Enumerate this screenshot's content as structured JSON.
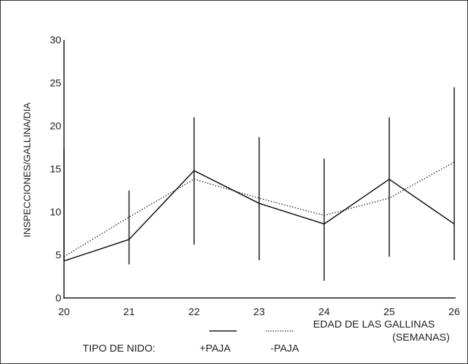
{
  "chart_data": {
    "type": "line",
    "ylabel": "INSPECCIONES/GALLINA/DIA",
    "xlabel": "EDAD DE LAS GALLINAS",
    "xlabel_unit": "(SEMANAS)",
    "x": [
      20,
      21,
      22,
      23,
      24,
      25,
      26
    ],
    "xlim": [
      20,
      26
    ],
    "ylim": [
      0,
      30
    ],
    "yticks": [
      0,
      5,
      10,
      15,
      20,
      25,
      30
    ],
    "grid": false,
    "legend": {
      "placement": "bottom",
      "title": "TIPO DE NIDO:",
      "entries": [
        "+PAJA",
        "-PAJA"
      ]
    },
    "series": [
      {
        "name": "+PAJA",
        "style": "solid",
        "values": [
          4.3,
          6.8,
          14.8,
          11.0,
          8.6,
          13.8,
          8.6
        ],
        "error_low": [
          null,
          3.9,
          6.2,
          4.4,
          2.0,
          4.8,
          4.4
        ],
        "error_high": [
          17.5,
          12.5,
          21.0,
          18.7,
          16.2,
          21.0,
          24.5
        ]
      },
      {
        "name": "-PAJA",
        "style": "dotted",
        "values": [
          4.8,
          9.4,
          13.8,
          11.6,
          9.6,
          11.6,
          15.8
        ]
      }
    ]
  }
}
